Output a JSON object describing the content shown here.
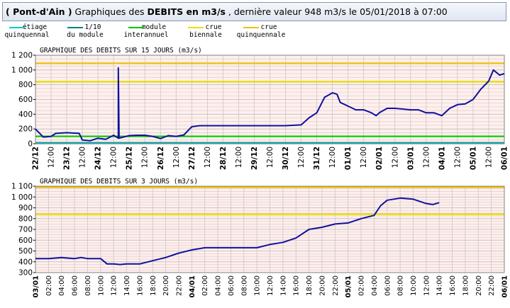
{
  "header": {
    "station": "( Pont-d'Ain )",
    "pre": " Graphiques des ",
    "bold": "DEBITS en m3/s",
    "post": " , dernière valeur 948 m3/s le 05/01/2018 à 07:00"
  },
  "legend": [
    {
      "line1": "étiage",
      "line2": "quinquennal",
      "color": "#00c8c8"
    },
    {
      "line1": "1/10",
      "line2": "du module",
      "color": "#008080"
    },
    {
      "line1": "module",
      "line2": "interannuel",
      "color": "#00c800"
    },
    {
      "line1": "crue",
      "line2": "biennale",
      "color": "#e8e000"
    },
    {
      "line1": "crue",
      "line2": "quinquennale",
      "color": "#f0c000"
    }
  ],
  "chart_data": [
    {
      "type": "line",
      "title": "GRAPHIQUE DES DEBITS SUR 15 JOURS (m3/s)",
      "ylim": [
        0,
        1200
      ],
      "yticks": [
        "0",
        "200",
        "400",
        "600",
        "800",
        "1 000",
        "1 200"
      ],
      "ytick_values": [
        0,
        200,
        400,
        600,
        800,
        1000,
        1200
      ],
      "xlim": [
        0,
        30
      ],
      "xticks": [
        "22/12",
        "12:00",
        "23/12",
        "12:00",
        "24/12",
        "12:00",
        "25/12",
        "12:00",
        "26/12",
        "12:00",
        "27/12",
        "12:00",
        "28/12",
        "12:00",
        "29/12",
        "12:00",
        "30/12",
        "12:00",
        "31/12",
        "12:00",
        "01/01",
        "12:00",
        "02/01",
        "12:00",
        "03/01",
        "12:00",
        "04/01",
        "12:00",
        "05/01",
        "12:00",
        "06/01"
      ],
      "thresholds": [
        {
          "name": "crue quinquennale",
          "value": 1090,
          "color": "#f0c000"
        },
        {
          "name": "crue biennale",
          "value": 840,
          "color": "#e8e000"
        },
        {
          "name": "module interannuel",
          "value": 100,
          "color": "#00c800"
        },
        {
          "name": "1/10 du module",
          "value": 12,
          "color": "#008080"
        },
        {
          "name": "étiage quinquennal",
          "value": 4,
          "color": "#00c8c8"
        }
      ],
      "series": [
        {
          "color": "#1010a0",
          "x": [
            0,
            0.5,
            1,
            1.3,
            2,
            2.8,
            3,
            3.5,
            4,
            4.5,
            5,
            5.3,
            5.3,
            5.35,
            5.35,
            6,
            6.5,
            7,
            7.5,
            8,
            8.5,
            9,
            9.5,
            10,
            10.5,
            11,
            12,
            14,
            16,
            17,
            17.5,
            18,
            18.5,
            19,
            19.3,
            19.5,
            20,
            20.5,
            21,
            21.5,
            21.8,
            22,
            22.5,
            23,
            23.5,
            24,
            24.5,
            25,
            25.5,
            26,
            26.5,
            27,
            27.5,
            28,
            28.5,
            29,
            29.3,
            29.7,
            30
          ],
          "y": [
            200,
            90,
            100,
            140,
            150,
            140,
            50,
            40,
            75,
            60,
            115,
            75,
            1030,
            75,
            75,
            110,
            115,
            115,
            100,
            70,
            110,
            100,
            120,
            230,
            245,
            245,
            245,
            245,
            245,
            255,
            350,
            420,
            630,
            690,
            670,
            560,
            510,
            460,
            460,
            420,
            380,
            420,
            480,
            480,
            470,
            460,
            460,
            420,
            420,
            380,
            480,
            530,
            540,
            600,
            740,
            850,
            1000,
            930,
            950
          ]
        }
      ]
    },
    {
      "type": "line",
      "title": "GRAPHIQUE DES DEBITS SUR 3 JOURS (m3/s)",
      "ylim": [
        300,
        1100
      ],
      "yticks": [
        "300",
        "400",
        "500",
        "600",
        "700",
        "800",
        "900",
        "1 000",
        "1 100"
      ],
      "ytick_values": [
        300,
        400,
        500,
        600,
        700,
        800,
        900,
        1000,
        1100
      ],
      "xlim": [
        0,
        36
      ],
      "xticks": [
        "03/01",
        "02:00",
        "04:00",
        "06:00",
        "08:00",
        "10:00",
        "12:00",
        "14:00",
        "16:00",
        "18:00",
        "20:00",
        "22:00",
        "04/01",
        "02:00",
        "04:00",
        "06:00",
        "08:00",
        "10:00",
        "12:00",
        "14:00",
        "16:00",
        "18:00",
        "20:00",
        "22:00",
        "05/01",
        "02:00",
        "04:00",
        "06:00",
        "08:00",
        "10:00",
        "12:00",
        "14:00",
        "16:00",
        "18:00",
        "20:00",
        "22:00",
        "06/01"
      ],
      "thresholds": [
        {
          "name": "crue quinquennale",
          "value": 1090,
          "color": "#f0c000"
        },
        {
          "name": "crue biennale",
          "value": 840,
          "color": "#e8e000"
        }
      ],
      "series": [
        {
          "color": "#1010a0",
          "x": [
            0,
            1,
            2,
            3,
            3.5,
            4,
            5,
            5.5,
            6,
            6.5,
            7,
            8,
            9,
            10,
            11,
            12,
            13,
            14,
            15,
            16,
            17,
            18,
            19,
            20,
            21,
            22,
            23,
            24,
            25,
            26,
            26.5,
            27,
            28,
            29,
            30,
            30.5,
            31
          ],
          "y": [
            430,
            430,
            440,
            430,
            440,
            430,
            430,
            380,
            380,
            375,
            380,
            380,
            410,
            440,
            480,
            510,
            530,
            530,
            530,
            530,
            530,
            560,
            580,
            620,
            700,
            720,
            750,
            760,
            800,
            830,
            920,
            970,
            990,
            980,
            940,
            930,
            948
          ]
        }
      ]
    }
  ]
}
